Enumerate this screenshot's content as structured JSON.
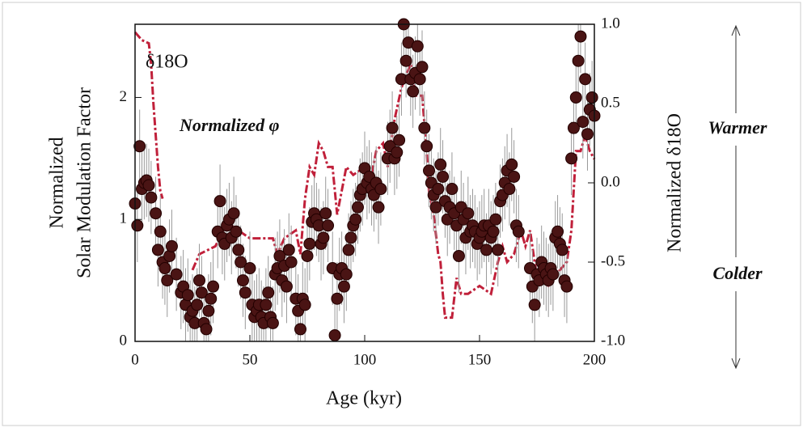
{
  "chart_data": {
    "type": "scatter",
    "xlabel": "Age (kyr)",
    "ylabel": [
      "Normalized",
      "Solar Modulation Factor"
    ],
    "y2label": "Normalized δ18O",
    "annotations": [
      "Warmer",
      "Colder"
    ],
    "xlim": [
      0,
      200
    ],
    "xticks": [
      0,
      50,
      100,
      150,
      200
    ],
    "ylim": [
      0,
      2.6
    ],
    "yticks": [
      0,
      1,
      2
    ],
    "y2lim": [
      -1,
      1
    ],
    "y2ticks": [
      {
        "value": -1,
        "label": "-1.0"
      },
      -0.5,
      {
        "value": 0,
        "label": "0.0"
      },
      0.5,
      {
        "value": 1,
        "label": "1.0"
      }
    ],
    "error": 0.3,
    "series": [
      {
        "name": "Normalized φ",
        "type": "scatter",
        "color": "#4a1414",
        "x": [
          0,
          1,
          2,
          3,
          4,
          5,
          6,
          7,
          9,
          10,
          11,
          12,
          13,
          14,
          15,
          16,
          18,
          20,
          21,
          22,
          23,
          24,
          25,
          26,
          27,
          28,
          29,
          30,
          31,
          32,
          33,
          34,
          36,
          37,
          38,
          39,
          40,
          41,
          42,
          43,
          44,
          45,
          46,
          47,
          48,
          50,
          51,
          52,
          53,
          54,
          55,
          56,
          57,
          58,
          59,
          60,
          61,
          62,
          63,
          64,
          65,
          66,
          67,
          68,
          70,
          71,
          72,
          73,
          74,
          75,
          76,
          77,
          78,
          79,
          80,
          81,
          82,
          83,
          84,
          86,
          87,
          88,
          89,
          90,
          91,
          92,
          93,
          94,
          95,
          96,
          97,
          98,
          99,
          100,
          101,
          102,
          103,
          104,
          105,
          106,
          107,
          110,
          111,
          112,
          113,
          114,
          115,
          116,
          117,
          118,
          119,
          120,
          121,
          122,
          123,
          124,
          125,
          126,
          127,
          128,
          129,
          130,
          131,
          132,
          133,
          134,
          135,
          136,
          137,
          138,
          139,
          140,
          141,
          142,
          143,
          144,
          145,
          146,
          147,
          148,
          149,
          150,
          151,
          152,
          153,
          154,
          155,
          156,
          157,
          158,
          159,
          160,
          161,
          162,
          163,
          164,
          165,
          166,
          167,
          172,
          173,
          174,
          175,
          176,
          177,
          178,
          179,
          180,
          181,
          182,
          183,
          184,
          185,
          186,
          187,
          188,
          190,
          191,
          192,
          193,
          194,
          195,
          196,
          197,
          198,
          199,
          200
        ],
        "values": [
          1.13,
          0.95,
          1.6,
          1.25,
          1.3,
          1.32,
          1.28,
          1.18,
          1.05,
          0.75,
          0.9,
          0.65,
          0.6,
          0.5,
          0.7,
          0.78,
          0.55,
          0.4,
          0.45,
          0.3,
          0.38,
          0.2,
          0.25,
          0.15,
          0.3,
          0.5,
          0.4,
          0.15,
          0.1,
          0.25,
          0.35,
          0.45,
          0.9,
          1.15,
          0.85,
          0.8,
          0.95,
          1.0,
          0.85,
          1.05,
          0.9,
          0.75,
          0.65,
          0.5,
          0.4,
          0.6,
          0.3,
          0.2,
          0.25,
          0.3,
          0.2,
          0.15,
          0.3,
          0.4,
          0.2,
          0.15,
          0.55,
          0.6,
          0.7,
          0.5,
          0.62,
          0.45,
          0.75,
          0.65,
          0.35,
          0.25,
          0.1,
          0.35,
          0.3,
          0.7,
          0.8,
          0.98,
          1.05,
          1.0,
          0.95,
          0.8,
          0.85,
          1.05,
          0.95,
          0.6,
          0.05,
          0.35,
          0.55,
          0.6,
          0.45,
          0.55,
          0.75,
          0.85,
          0.95,
          1.0,
          1.1,
          1.2,
          1.25,
          1.42,
          1.3,
          1.35,
          1.25,
          1.2,
          1.3,
          1.1,
          1.25,
          1.5,
          1.6,
          1.75,
          1.5,
          1.55,
          1.65,
          2.15,
          2.6,
          2.3,
          2.45,
          2.15,
          2.05,
          2.2,
          2.42,
          2.15,
          2.25,
          1.75,
          1.6,
          1.4,
          1.3,
          1.2,
          1.1,
          1.25,
          1.45,
          1.35,
          1.15,
          1.0,
          1.1,
          1.25,
          1.05,
          0.95,
          0.7,
          1.1,
          1.0,
          0.85,
          1.05,
          0.9,
          0.95,
          0.9,
          0.8,
          0.85,
          0.9,
          0.95,
          0.75,
          0.95,
          0.85,
          0.9,
          1.0,
          0.75,
          1.15,
          1.2,
          1.3,
          1.4,
          1.25,
          1.45,
          1.35,
          0.95,
          0.9,
          0.6,
          0.45,
          0.3,
          0.55,
          0.5,
          0.65,
          0.6,
          0.55,
          0.5,
          0.6,
          0.55,
          0.85,
          0.9,
          0.8,
          0.75,
          0.5,
          0.45,
          1.5,
          1.75,
          2.0,
          2.3,
          2.5,
          1.8,
          2.15,
          1.7,
          1.9,
          2.0,
          1.85
        ]
      },
      {
        "name": "δ18O",
        "type": "line",
        "axis": "y2",
        "color": "#c0203a",
        "x": [
          0,
          3,
          6,
          7,
          8,
          9,
          10,
          11,
          12,
          18,
          25,
          28,
          35,
          40,
          45,
          50,
          55,
          60,
          62,
          65,
          70,
          72,
          74,
          76,
          78,
          80,
          82,
          84,
          86,
          88,
          90,
          92,
          95,
          100,
          103,
          105,
          108,
          110,
          113,
          116,
          120,
          122,
          125,
          127,
          128,
          130,
          132,
          133,
          134,
          135,
          138,
          140,
          142,
          145,
          150,
          155,
          158,
          160,
          162,
          165,
          168,
          170,
          172,
          175,
          180,
          185,
          188,
          190,
          192,
          194,
          196,
          198,
          200
        ],
        "values": [
          0.95,
          0.9,
          0.88,
          0.75,
          0.5,
          0.3,
          0.1,
          -0.05,
          -0.1,
          null,
          -0.55,
          -0.45,
          -0.4,
          -0.25,
          -0.3,
          -0.35,
          -0.35,
          -0.35,
          -0.45,
          -0.35,
          -0.3,
          -0.45,
          -0.1,
          0.1,
          0.05,
          0.25,
          0.2,
          0.1,
          0.1,
          -0.2,
          -0.05,
          0.1,
          0.05,
          0.1,
          0.05,
          0.2,
          0.25,
          0.1,
          0.4,
          0.6,
          0.75,
          0.55,
          0.55,
          0.2,
          -0.05,
          -0.2,
          -0.45,
          -0.5,
          -0.7,
          -0.85,
          -0.85,
          -0.6,
          -0.7,
          -0.7,
          -0.65,
          -0.7,
          -0.5,
          -0.4,
          -0.5,
          -0.45,
          -0.3,
          -0.4,
          -0.3,
          -0.6,
          -0.65,
          -0.55,
          -0.5,
          -0.3,
          0.2,
          0.2,
          0.3,
          0.2,
          0.15
        ]
      }
    ]
  }
}
